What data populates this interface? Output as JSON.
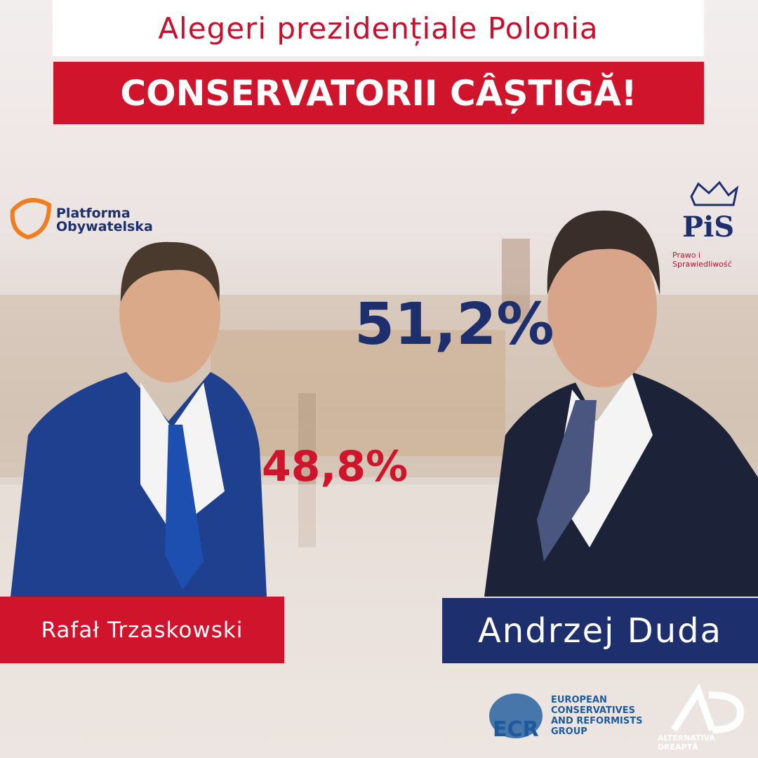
{
  "header": {
    "title": "Alegeri prezidențiale Polonia",
    "banner": "CONSERVATORII CÂȘTIGĂ!"
  },
  "candidates": [
    {
      "name": "Rafał Trzaskowski",
      "result": "48,8%",
      "party": [
        "Platforma",
        "Obywatelska"
      ]
    },
    {
      "name": "Andrzej Duda",
      "result": "51,2%",
      "party": [
        "PiS",
        "Prawo i Sprawiedliwość"
      ]
    }
  ],
  "footer": {
    "ecr_logo": "ECR",
    "ecr_name": "EUROPEAN CONSERVATIVES AND REFORMISTS GROUP",
    "ad_name": "ALTERNATIVA DREAPTĂ"
  }
}
